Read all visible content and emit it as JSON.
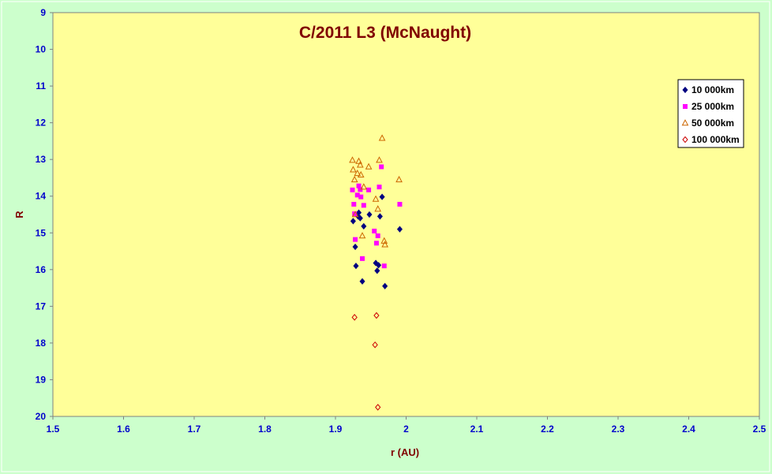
{
  "chart_data": {
    "type": "scatter",
    "title": "C/2011 L3 (McNaught)",
    "xlabel": "r (AU)",
    "ylabel": "R",
    "xlim": [
      1.5,
      2.5
    ],
    "ylim": [
      9,
      20
    ],
    "y_reversed": true,
    "x_ticks": [
      "1.5",
      "1.6",
      "1.7",
      "1.8",
      "1.9",
      "2",
      "2.1",
      "2.2",
      "2.3",
      "2.4",
      "2.5"
    ],
    "y_ticks": [
      "9",
      "10",
      "11",
      "12",
      "13",
      "14",
      "15",
      "16",
      "17",
      "18",
      "19",
      "20"
    ],
    "grid": false,
    "legend_position": "top-right",
    "colors": {
      "background": "#ccffcc",
      "plot_area": "#ffff99",
      "title": "#800000",
      "ticks": "#0000cc"
    },
    "series": [
      {
        "name": "10 000km",
        "marker": "diamond-filled",
        "color": "#000080",
        "points": [
          [
            1.925,
            14.68
          ],
          [
            1.928,
            15.38
          ],
          [
            1.929,
            15.9
          ],
          [
            1.932,
            14.55
          ],
          [
            1.933,
            14.45
          ],
          [
            1.935,
            14.6
          ],
          [
            1.938,
            16.32
          ],
          [
            1.94,
            14.82
          ],
          [
            1.948,
            14.5
          ],
          [
            1.957,
            15.82
          ],
          [
            1.959,
            16.03
          ],
          [
            1.961,
            15.88
          ],
          [
            1.963,
            14.55
          ],
          [
            1.966,
            14.02
          ],
          [
            1.97,
            16.45
          ],
          [
            1.991,
            14.9
          ]
        ]
      },
      {
        "name": "25 000km",
        "marker": "square-filled",
        "color": "#ff00ff",
        "points": [
          [
            1.924,
            13.83
          ],
          [
            1.926,
            14.22
          ],
          [
            1.927,
            14.48
          ],
          [
            1.928,
            15.18
          ],
          [
            1.931,
            13.97
          ],
          [
            1.933,
            13.72
          ],
          [
            1.935,
            13.82
          ],
          [
            1.936,
            14.02
          ],
          [
            1.938,
            15.7
          ],
          [
            1.94,
            14.25
          ],
          [
            1.947,
            13.83
          ],
          [
            1.955,
            14.95
          ],
          [
            1.958,
            15.28
          ],
          [
            1.96,
            15.08
          ],
          [
            1.962,
            13.75
          ],
          [
            1.965,
            13.2
          ],
          [
            1.969,
            15.9
          ],
          [
            1.991,
            14.22
          ]
        ]
      },
      {
        "name": "50 000km",
        "marker": "triangle-open",
        "color": "#cc6600",
        "points": [
          [
            1.924,
            13.02
          ],
          [
            1.925,
            13.28
          ],
          [
            1.927,
            13.55
          ],
          [
            1.928,
            14.5
          ],
          [
            1.931,
            13.38
          ],
          [
            1.933,
            13.05
          ],
          [
            1.935,
            13.15
          ],
          [
            1.936,
            13.42
          ],
          [
            1.938,
            15.08
          ],
          [
            1.94,
            13.75
          ],
          [
            1.947,
            13.2
          ],
          [
            1.957,
            14.08
          ],
          [
            1.96,
            14.35
          ],
          [
            1.962,
            13.02
          ],
          [
            1.966,
            12.42
          ],
          [
            1.969,
            15.22
          ],
          [
            1.97,
            15.32
          ],
          [
            1.99,
            13.55
          ]
        ]
      },
      {
        "name": "100 000km",
        "marker": "diamond-open",
        "color": "#cc0000",
        "points": [
          [
            1.927,
            17.3
          ],
          [
            1.956,
            18.05
          ],
          [
            1.958,
            17.25
          ],
          [
            1.96,
            19.75
          ]
        ]
      }
    ]
  }
}
